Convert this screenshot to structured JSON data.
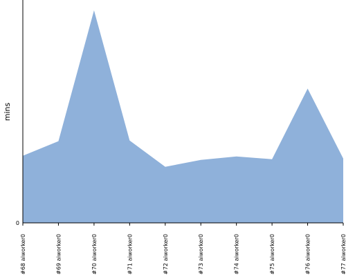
{
  "chart_data": {
    "type": "area",
    "categories": [
      "#68 aiworker0",
      "#69 aiworker0",
      "#70 aiworker0",
      "#71 aiworker0",
      "#72 aiworker0",
      "#73 aiworker0",
      "#74 aiworker0",
      "#75 aiworker0",
      "#76 aiworker0",
      "#77 aiworker0"
    ],
    "series": [
      {
        "values": [
          97,
          118,
          307,
          119,
          81,
          91,
          96,
          92,
          194,
          93
        ]
      }
    ],
    "ylabel": "mins",
    "y_tick_labels": [
      "0"
    ],
    "ylim": [
      0,
      322
    ],
    "grid": false,
    "legend": "none",
    "colors": {
      "fill": "#8fb1da",
      "axis": "#000000"
    }
  }
}
